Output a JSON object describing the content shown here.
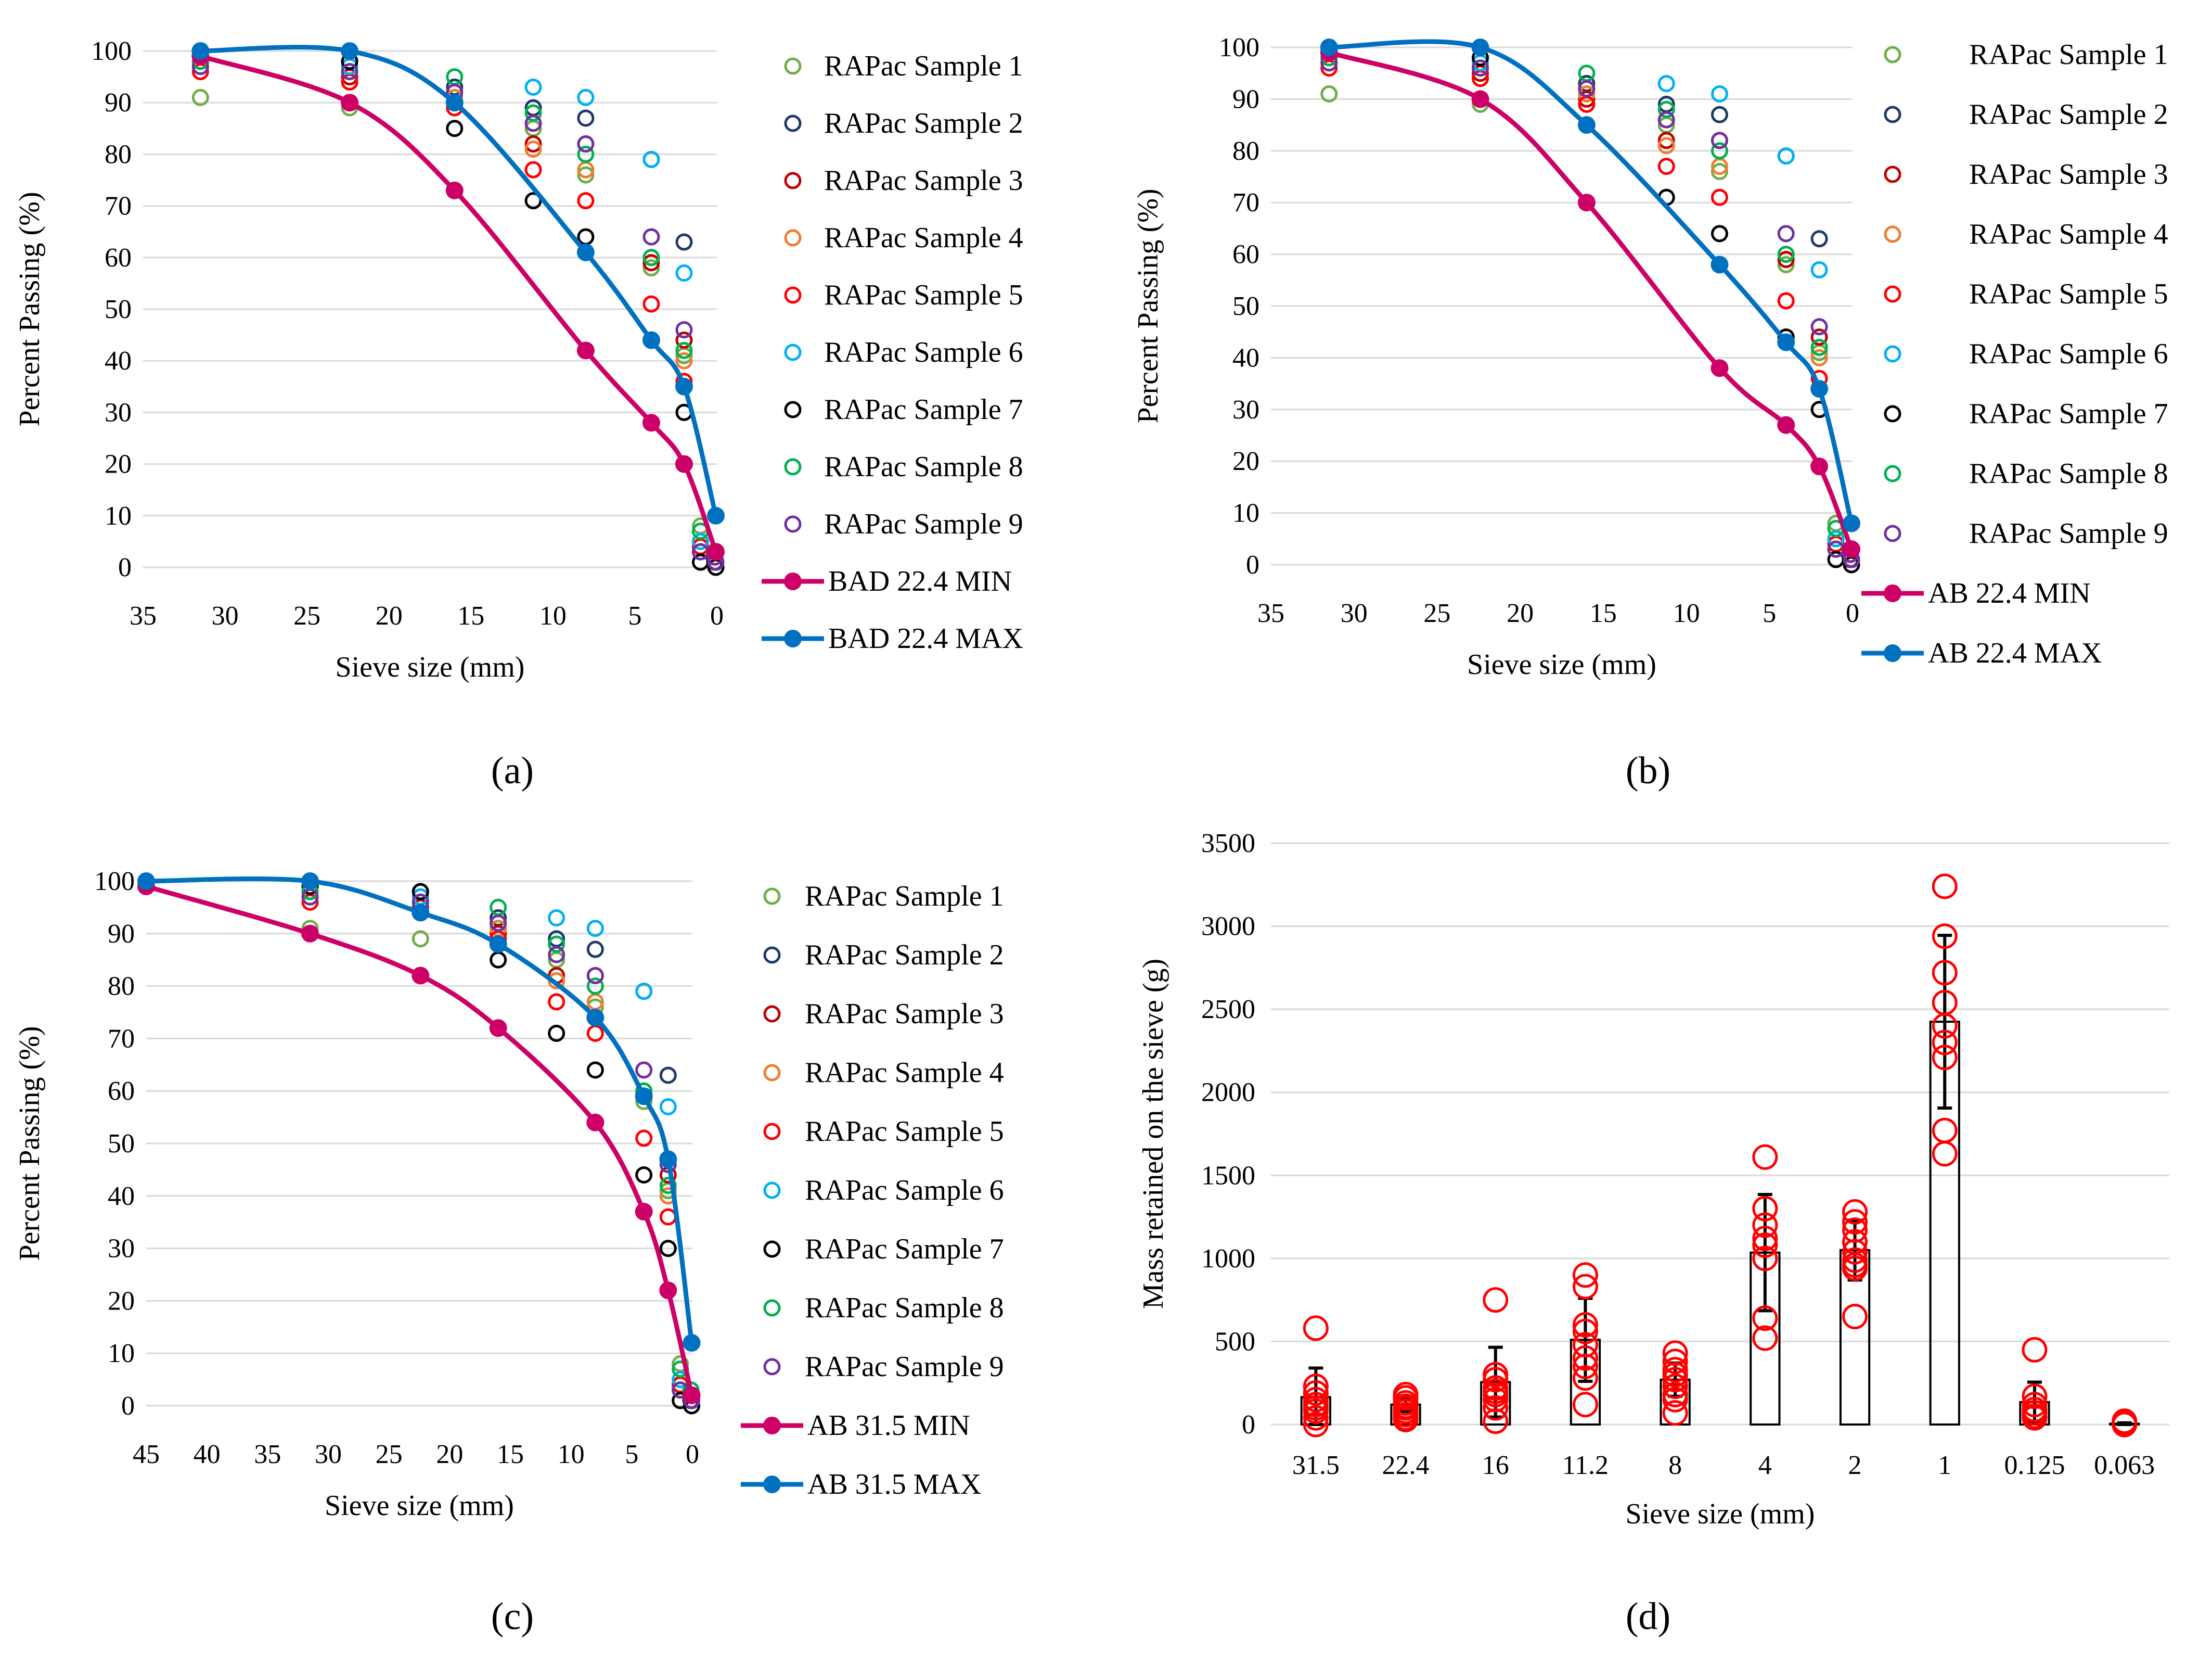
{
  "colors": {
    "s1": "#70ad47",
    "s2": "#1f3a68",
    "s3": "#c00000",
    "s4": "#ed7d31",
    "s5": "#ff0000",
    "s6": "#00b0f0",
    "s7": "#000000",
    "s8": "#00b050",
    "s9": "#7030a0",
    "min": "#cc0066",
    "max": "#0070c0",
    "grid": "#d9d9d9",
    "bar": "#000000",
    "scatter_d": "#ff0000"
  },
  "panel_labels": {
    "a": "(a)",
    "b": "(b)",
    "c": "(c)",
    "d": "(d)"
  },
  "sieve_sizes": [
    45,
    31.5,
    22.4,
    16,
    11.2,
    8,
    4,
    2,
    1,
    0.125,
    0.063
  ],
  "samples": [
    {
      "name": "RAPac Sample 1",
      "values": [
        100,
        91,
        89,
        93,
        85,
        76,
        58,
        41,
        8,
        2,
        1
      ]
    },
    {
      "name": "RAPac Sample 2",
      "values": [
        100,
        100,
        98,
        93,
        89,
        87,
        79,
        63,
        3,
        2,
        1
      ]
    },
    {
      "name": "RAPac Sample 3",
      "values": [
        100,
        98,
        95,
        90,
        82,
        82,
        59,
        44,
        4,
        2,
        1
      ]
    },
    {
      "name": "RAPac Sample 4",
      "values": [
        100,
        97,
        94,
        91,
        81,
        77,
        60,
        40,
        4,
        2,
        1
      ]
    },
    {
      "name": "RAPac Sample 5",
      "values": [
        100,
        96,
        94,
        89,
        77,
        71,
        51,
        36,
        4,
        2,
        1
      ]
    },
    {
      "name": "RAPac Sample 6",
      "values": [
        100,
        99,
        97,
        92,
        93,
        91,
        79,
        57,
        5,
        3,
        1
      ]
    },
    {
      "name": "RAPac Sample 7",
      "values": [
        100,
        99,
        98,
        85,
        71,
        64,
        44,
        30,
        1,
        1,
        0
      ]
    },
    {
      "name": "RAPac Sample 8",
      "values": [
        100,
        98,
        96,
        95,
        88,
        80,
        60,
        42,
        7,
        3,
        1
      ]
    },
    {
      "name": "RAPac Sample 9",
      "values": [
        100,
        97,
        96,
        92,
        86,
        82,
        64,
        46,
        3,
        2,
        1
      ]
    }
  ],
  "chart_data": [
    {
      "panel": "a",
      "type": "scatter",
      "xlabel": "Sieve size (mm)",
      "ylabel": "Percent Passing (%)",
      "xlim": [
        35,
        0
      ],
      "ylim": [
        0,
        100
      ],
      "xticks": [
        35,
        30,
        25,
        20,
        15,
        10,
        5,
        0
      ],
      "yticks": [
        0,
        10,
        20,
        30,
        40,
        50,
        60,
        70,
        80,
        90,
        100
      ],
      "x": [
        31.5,
        22.4,
        16,
        11.2,
        8,
        4,
        2,
        1,
        0.125,
        0.063
      ],
      "series": [
        {
          "name": "BAD 22.4 MIN",
          "x": [
            31.5,
            22.4,
            16,
            8,
            4,
            2,
            0.063
          ],
          "values": [
            99,
            90,
            73,
            42,
            28,
            20,
            3
          ]
        },
        {
          "name": "BAD 22.4 MAX",
          "x": [
            31.5,
            22.4,
            16,
            8,
            4,
            2,
            0.063
          ],
          "values": [
            100,
            100,
            90,
            61,
            44,
            35,
            10
          ]
        }
      ]
    },
    {
      "panel": "b",
      "type": "scatter",
      "xlabel": "Sieve size (mm)",
      "ylabel": "Percent Passing (%)",
      "xlim": [
        35,
        0
      ],
      "ylim": [
        0,
        100
      ],
      "xticks": [
        35,
        30,
        25,
        20,
        15,
        10,
        5,
        0
      ],
      "yticks": [
        0,
        10,
        20,
        30,
        40,
        50,
        60,
        70,
        80,
        90,
        100
      ],
      "x": [
        31.5,
        22.4,
        16,
        11.2,
        8,
        4,
        2,
        1,
        0.125,
        0.063
      ],
      "series": [
        {
          "name": "AB 22.4 MIN",
          "x": [
            31.5,
            22.4,
            16,
            8,
            4,
            2,
            0.063
          ],
          "values": [
            99,
            90,
            70,
            38,
            27,
            19,
            3
          ]
        },
        {
          "name": "AB 22.4 MAX",
          "x": [
            31.5,
            22.4,
            16,
            8,
            4,
            2,
            0.063
          ],
          "values": [
            100,
            100,
            85,
            58,
            43,
            34,
            8
          ]
        }
      ]
    },
    {
      "panel": "c",
      "type": "scatter",
      "xlabel": "Sieve size (mm)",
      "ylabel": "Percent Passing (%)",
      "xlim": [
        45,
        0
      ],
      "ylim": [
        0,
        100
      ],
      "xticks": [
        45,
        40,
        35,
        30,
        25,
        20,
        15,
        10,
        5,
        0
      ],
      "yticks": [
        0,
        10,
        20,
        30,
        40,
        50,
        60,
        70,
        80,
        90,
        100
      ],
      "x": [
        45,
        31.5,
        22.4,
        16,
        11.2,
        8,
        4,
        2,
        1,
        0.125,
        0.063
      ],
      "series": [
        {
          "name": "AB 31.5 MIN",
          "x": [
            45,
            31.5,
            22.4,
            16,
            8,
            4,
            2,
            0.063
          ],
          "values": [
            99,
            90,
            82,
            72,
            54,
            37,
            22,
            2
          ]
        },
        {
          "name": "AB 31.5 MAX",
          "x": [
            45,
            31.5,
            22.4,
            16,
            8,
            4,
            2,
            0.063
          ],
          "values": [
            100,
            100,
            94,
            88,
            74,
            59,
            47,
            12
          ]
        }
      ]
    },
    {
      "panel": "d",
      "type": "bar",
      "xlabel": "Sieve size (mm)",
      "ylabel": "Mass retained on the sieve (g)",
      "ylim": [
        0,
        3500
      ],
      "yticks": [
        0,
        500,
        1000,
        1500,
        2000,
        2500,
        3000,
        3500
      ],
      "categories": [
        "31.5",
        "22.4",
        "16",
        "11.2",
        "8",
        "4",
        "2",
        "1",
        "0.125",
        "0.063"
      ],
      "values": [
        165,
        120,
        255,
        510,
        270,
        1035,
        1050,
        2425,
        135,
        5
      ],
      "errors": [
        175,
        40,
        210,
        250,
        100,
        350,
        180,
        520,
        120,
        5
      ],
      "points": [
        [
          580,
          230,
          190,
          150,
          120,
          100,
          80,
          40,
          0
        ],
        [
          180,
          160,
          130,
          110,
          100,
          80,
          60,
          40,
          30
        ],
        [
          750,
          300,
          270,
          220,
          200,
          180,
          150,
          100,
          20
        ],
        [
          900,
          830,
          600,
          560,
          480,
          400,
          350,
          280,
          120
        ],
        [
          430,
          380,
          330,
          300,
          270,
          230,
          180,
          150,
          70
        ],
        [
          1610,
          1300,
          1200,
          1120,
          1080,
          1000,
          640,
          520
        ],
        [
          1280,
          1220,
          1170,
          1100,
          1040,
          990,
          960,
          940,
          650
        ],
        [
          3240,
          2940,
          2720,
          2540,
          2400,
          2300,
          2210,
          1770,
          1630
        ],
        [
          450,
          170,
          120,
          90,
          70,
          50,
          40
        ],
        [
          20,
          10,
          5,
          0
        ]
      ]
    }
  ]
}
